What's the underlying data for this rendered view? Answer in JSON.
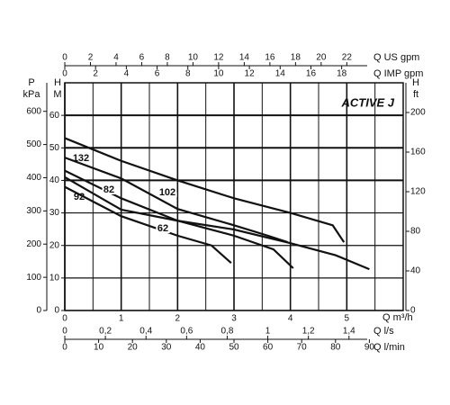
{
  "chart_data": {
    "type": "line",
    "title": "ACTIVE J",
    "x_label": "Q m³/h",
    "xlim": [
      0,
      6
    ],
    "xticks": [
      0,
      1,
      2,
      3,
      4,
      5
    ],
    "y_symbol": "H",
    "y_unit": "M",
    "ylim": [
      0,
      70
    ],
    "yticks": [
      0,
      10,
      20,
      30,
      40,
      50,
      60
    ],
    "grid": true,
    "p_axis": {
      "symbol": "P",
      "unit": "kPa",
      "lim": [
        0,
        686
      ],
      "ticks": [
        0,
        100,
        200,
        300,
        400,
        500,
        600
      ]
    },
    "ft_axis": {
      "symbol": "H",
      "unit": "ft",
      "lim": [
        0,
        230
      ],
      "ticks": [
        0,
        40,
        80,
        120,
        160,
        200
      ]
    },
    "top_axes": [
      {
        "label": "Q US gpm",
        "lim": [
          0,
          26.4
        ],
        "ticks": [
          0,
          2,
          4,
          6,
          8,
          10,
          12,
          14,
          16,
          18,
          20,
          22
        ]
      },
      {
        "label": "Q IMP gpm",
        "lim": [
          0,
          22
        ],
        "ticks": [
          0,
          2,
          4,
          6,
          8,
          10,
          12,
          14,
          16,
          18
        ]
      }
    ],
    "bottom_axes": [
      {
        "label": "Q l/s",
        "lim": [
          0,
          1.667
        ],
        "ticks": [
          0,
          {
            "value": 0.2,
            "label": "0,2"
          },
          {
            "value": 0.4,
            "label": "0,4"
          },
          {
            "value": 0.6,
            "label": "0,6"
          },
          {
            "value": 0.8,
            "label": "0,8"
          },
          1,
          {
            "value": 1.2,
            "label": "1,2"
          },
          {
            "value": 1.4,
            "label": "1,4"
          }
        ]
      },
      {
        "label": "Q l/min",
        "lim": [
          0,
          100
        ],
        "ticks": [
          0,
          10,
          20,
          30,
          40,
          50,
          60,
          70,
          80,
          90
        ]
      }
    ],
    "series": [
      {
        "name": "132",
        "color": "#111111",
        "x": [
          0,
          1,
          2,
          3,
          4,
          4.75,
          4.95
        ],
        "values": [
          53,
          46,
          40,
          34.5,
          30,
          26.2,
          21
        ]
      },
      {
        "name": "102",
        "color": "#111111",
        "x": [
          0,
          1,
          2,
          3,
          3.6,
          3.95
        ],
        "values": [
          47,
          40.6,
          31.2,
          26.2,
          23,
          21
        ]
      },
      {
        "name": "82",
        "color": "#111111",
        "x": [
          0,
          1,
          2,
          3,
          3.7,
          4.05
        ],
        "values": [
          43,
          34.5,
          27.6,
          23,
          18.8,
          13
        ]
      },
      {
        "name": "92",
        "color": "#111111",
        "x": [
          0,
          1,
          2,
          3,
          4,
          4.8,
          5.4
        ],
        "values": [
          41,
          31,
          27.6,
          24.9,
          20.7,
          17,
          12.7
        ]
      },
      {
        "name": "62",
        "color": "#111111",
        "x": [
          0,
          1,
          2,
          2.6,
          2.95
        ],
        "values": [
          38,
          29,
          23,
          20,
          14.6
        ]
      }
    ]
  }
}
